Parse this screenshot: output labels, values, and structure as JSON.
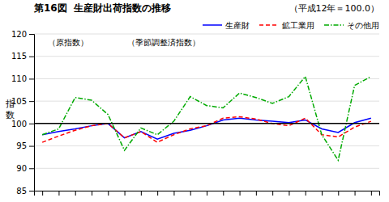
{
  "chart_data": {
    "type": "line",
    "title": "第16図  生産財出荷指数の推移",
    "subtitle": "（平成12年＝100.0）",
    "ylabel": "指数",
    "annotations": [
      "（原指数）",
      "（季節調整済指数）"
    ],
    "categories": [
      null,
      null,
      null,
      null,
      null,
      null,
      null,
      null,
      null,
      null,
      null,
      null,
      null,
      null,
      null,
      null,
      null,
      null,
      null,
      null,
      null
    ],
    "series": [
      {
        "name": "生産財",
        "color": "#0000ff",
        "line_style": "solid",
        "values": [
          97.5,
          98.2,
          98.8,
          99.5,
          100.0,
          96.8,
          98.2,
          96.5,
          97.8,
          98.5,
          99.5,
          100.8,
          101.2,
          100.8,
          100.5,
          100.2,
          100.8,
          98.8,
          98.0,
          100.2,
          101.2
        ]
      },
      {
        "name": "鉱工業用",
        "color": "#ff0000",
        "line_style": "dashed",
        "values": [
          95.8,
          97.2,
          98.5,
          99.5,
          100.0,
          96.8,
          98.2,
          95.8,
          97.5,
          98.8,
          99.5,
          101.2,
          101.5,
          101.0,
          100.0,
          99.5,
          101.2,
          97.5,
          97.0,
          99.2,
          100.5
        ]
      },
      {
        "name": "その他用",
        "color": "#00aa00",
        "line_style": "dashdot",
        "values": [
          97.5,
          98.8,
          105.8,
          105.2,
          102.0,
          94.0,
          99.0,
          97.5,
          100.5,
          106.0,
          104.0,
          103.5,
          106.8,
          105.8,
          104.5,
          106.0,
          110.5,
          97.5,
          91.8,
          108.5,
          110.5
        ]
      }
    ],
    "reference_line": 100,
    "ylim": [
      85,
      120
    ],
    "yticks": [
      85,
      90,
      95,
      100,
      105,
      110,
      115,
      120
    ],
    "grid": true,
    "legend": "upper right",
    "tick_labels": "y"
  }
}
